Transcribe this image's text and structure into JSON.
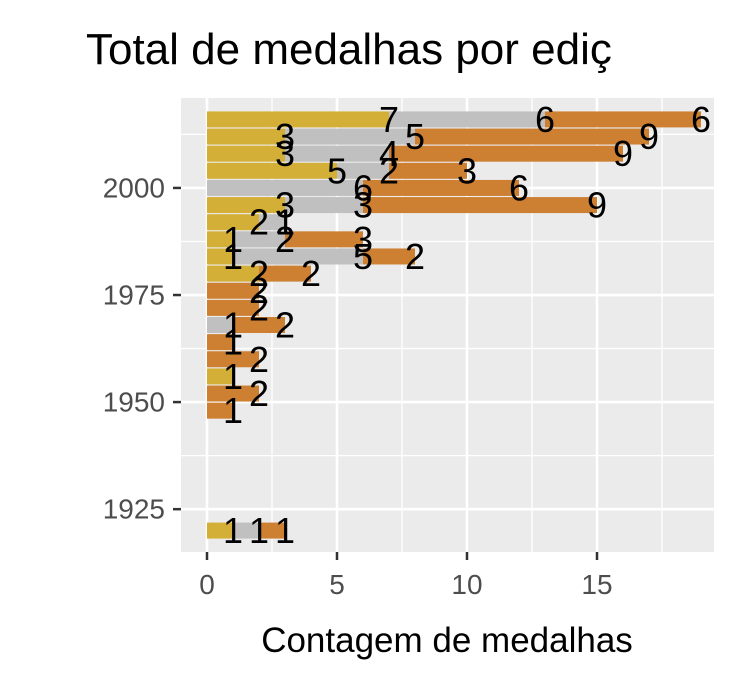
{
  "chart_data": {
    "type": "bar",
    "orientation": "horizontal",
    "stacked": true,
    "title": "Total de medalhas por ediç",
    "xlabel": "Contagem de medalhas",
    "ylabel": "",
    "xlim": [
      -1,
      19.5
    ],
    "ylim": [
      1915,
      2021
    ],
    "x_ticks": [
      0,
      5,
      10,
      15
    ],
    "y_ticks": [
      1925,
      1950,
      1975,
      2000
    ],
    "grid": true,
    "legend": "none",
    "series_colors": {
      "gold": "#d4af37",
      "silver": "#c0c0c0",
      "bronze": "#cd7f32"
    },
    "bars": [
      {
        "year": 1920,
        "gold": 1,
        "silver": 1,
        "bronze": 1,
        "labels": {
          "gold": "1",
          "silver": "1",
          "bronze": "1"
        }
      },
      {
        "year": 1948,
        "gold": 0,
        "silver": 0,
        "bronze": 1,
        "labels": {
          "bronze": "1"
        }
      },
      {
        "year": 1952,
        "gold": 0,
        "silver": 0,
        "bronze": 2,
        "labels": {
          "bronze": "2"
        }
      },
      {
        "year": 1956,
        "gold": 1,
        "silver": 0,
        "bronze": 0,
        "labels": {
          "gold": "1"
        }
      },
      {
        "year": 1960,
        "gold": 0,
        "silver": 0,
        "bronze": 2,
        "labels": {
          "bronze": "2"
        }
      },
      {
        "year": 1964,
        "gold": 0,
        "silver": 0,
        "bronze": 1,
        "labels": {
          "bronze": "1"
        }
      },
      {
        "year": 1968,
        "gold": 0,
        "silver": 1,
        "bronze": 2,
        "labels": {
          "silver": "1",
          "bronze": "2"
        }
      },
      {
        "year": 1972,
        "gold": 0,
        "silver": 0,
        "bronze": 2,
        "labels": {
          "bronze": "2"
        }
      },
      {
        "year": 1976,
        "gold": 0,
        "silver": 0,
        "bronze": 2,
        "labels": {
          "bronze": "2"
        }
      },
      {
        "year": 1980,
        "gold": 2,
        "silver": 0,
        "bronze": 2,
        "labels": {
          "gold": "2",
          "bronze": "2"
        }
      },
      {
        "year": 1984,
        "gold": 1,
        "silver": 5,
        "bronze": 2,
        "labels": {
          "gold": "1",
          "silver": "5",
          "bronze": "2"
        }
      },
      {
        "year": 1988,
        "gold": 1,
        "silver": 2,
        "bronze": 3,
        "labels": {
          "gold": "1",
          "silver": "2",
          "bronze": "3"
        }
      },
      {
        "year": 1992,
        "gold": 2,
        "silver": 1,
        "bronze": 0,
        "labels": {
          "gold": "2",
          "silver": "1"
        }
      },
      {
        "year": 1996,
        "gold": 3,
        "silver": 3,
        "bronze": 9,
        "labels": {
          "gold": "3",
          "silver": "3",
          "bronze": "9"
        }
      },
      {
        "year": 2000,
        "gold": 0,
        "silver": 6,
        "bronze": 6,
        "labels": {
          "silver": "6",
          "bronze": "6"
        }
      },
      {
        "year": 2004,
        "gold": 5,
        "silver": 2,
        "bronze": 3,
        "labels": {
          "gold": "5",
          "silver": "2",
          "bronze": "3"
        }
      },
      {
        "year": 2008,
        "gold": 3,
        "silver": 4,
        "bronze": 9,
        "labels": {
          "gold": "3",
          "silver": "4",
          "bronze": "9"
        }
      },
      {
        "year": 2012,
        "gold": 3,
        "silver": 5,
        "bronze": 9,
        "labels": {
          "gold": "3",
          "silver": "5",
          "bronze": "9"
        }
      },
      {
        "year": 2016,
        "gold": 7,
        "silver": 6,
        "bronze": 6,
        "labels": {
          "gold": "7",
          "silver": "6",
          "bronze": "6"
        }
      }
    ]
  }
}
